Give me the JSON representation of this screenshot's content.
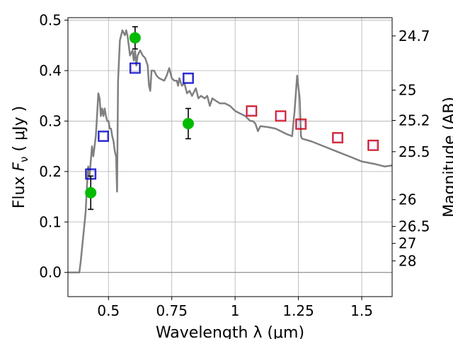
{
  "chart_data": {
    "type": "scatter",
    "title": "",
    "xlabel": "Wavelength  λ (μm)",
    "ylabel": "Flux  F_ν  ( μJy )",
    "ylabel_parts": {
      "prefix": "Flux  ",
      "symbol": "F",
      "subscript": "ν",
      "suffix": "  ( μJy )"
    },
    "y2label": "Magnitude (AB)",
    "xlim": [
      0.34,
      1.62
    ],
    "ylim": [
      -0.048,
      0.505
    ],
    "grid": true,
    "x_ticks": [
      {
        "value": 0.5,
        "label": "0.5"
      },
      {
        "value": 0.75,
        "label": "0.75"
      },
      {
        "value": 1.0,
        "label": "1"
      },
      {
        "value": 1.25,
        "label": "1.25"
      },
      {
        "value": 1.5,
        "label": "1.5"
      }
    ],
    "y_ticks": [
      {
        "value": 0.0,
        "label": "0.0"
      },
      {
        "value": 0.1,
        "label": "0.1"
      },
      {
        "value": 0.2,
        "label": "0.2"
      },
      {
        "value": 0.3,
        "label": "0.3"
      },
      {
        "value": 0.4,
        "label": "0.4"
      },
      {
        "value": 0.5,
        "label": "0.5"
      }
    ],
    "y2_ticks": [
      {
        "flux": 0.4688,
        "label": "24.7"
      },
      {
        "flux": 0.3613,
        "label": "25"
      },
      {
        "flux": 0.3013,
        "label": "25.2"
      },
      {
        "flux": 0.2393,
        "label": "25.5"
      },
      {
        "flux": 0.1442,
        "label": "26"
      },
      {
        "flux": 0.0911,
        "label": "26.5"
      },
      {
        "flux": 0.0575,
        "label": "27"
      },
      {
        "flux": 0.0229,
        "label": "28"
      }
    ],
    "series": [
      {
        "kind": "model-line",
        "color": "#808080",
        "points": [
          [
            0.34,
            0.0
          ],
          [
            0.385,
            0.0
          ],
          [
            0.39,
            0.02
          ],
          [
            0.4,
            0.07
          ],
          [
            0.41,
            0.12
          ],
          [
            0.415,
            0.17
          ],
          [
            0.42,
            0.21
          ],
          [
            0.425,
            0.19
          ],
          [
            0.43,
            0.22
          ],
          [
            0.435,
            0.25
          ],
          [
            0.44,
            0.23
          ],
          [
            0.445,
            0.25
          ],
          [
            0.45,
            0.27
          ],
          [
            0.455,
            0.31
          ],
          [
            0.46,
            0.355
          ],
          [
            0.465,
            0.345
          ],
          [
            0.47,
            0.31
          ],
          [
            0.475,
            0.325
          ],
          [
            0.48,
            0.31
          ],
          [
            0.485,
            0.325
          ],
          [
            0.49,
            0.31
          ],
          [
            0.495,
            0.3
          ],
          [
            0.5,
            0.3
          ],
          [
            0.505,
            0.285
          ],
          [
            0.51,
            0.285
          ],
          [
            0.515,
            0.27
          ],
          [
            0.52,
            0.26
          ],
          [
            0.525,
            0.24
          ],
          [
            0.53,
            0.23
          ],
          [
            0.534,
            0.16
          ],
          [
            0.538,
            0.38
          ],
          [
            0.545,
            0.46
          ],
          [
            0.555,
            0.48
          ],
          [
            0.565,
            0.47
          ],
          [
            0.57,
            0.48
          ],
          [
            0.575,
            0.47
          ],
          [
            0.585,
            0.43
          ],
          [
            0.595,
            0.44
          ],
          [
            0.6,
            0.42
          ],
          [
            0.605,
            0.44
          ],
          [
            0.61,
            0.41
          ],
          [
            0.615,
            0.43
          ],
          [
            0.625,
            0.44
          ],
          [
            0.635,
            0.43
          ],
          [
            0.645,
            0.425
          ],
          [
            0.655,
            0.41
          ],
          [
            0.66,
            0.37
          ],
          [
            0.665,
            0.36
          ],
          [
            0.67,
            0.4
          ],
          [
            0.68,
            0.4
          ],
          [
            0.69,
            0.39
          ],
          [
            0.7,
            0.385
          ],
          [
            0.72,
            0.38
          ],
          [
            0.73,
            0.39
          ],
          [
            0.74,
            0.405
          ],
          [
            0.75,
            0.385
          ],
          [
            0.76,
            0.38
          ],
          [
            0.77,
            0.38
          ],
          [
            0.775,
            0.37
          ],
          [
            0.78,
            0.385
          ],
          [
            0.79,
            0.37
          ],
          [
            0.8,
            0.375
          ],
          [
            0.81,
            0.355
          ],
          [
            0.82,
            0.36
          ],
          [
            0.83,
            0.35
          ],
          [
            0.845,
            0.365
          ],
          [
            0.855,
            0.345
          ],
          [
            0.865,
            0.35
          ],
          [
            0.88,
            0.345
          ],
          [
            0.89,
            0.35
          ],
          [
            0.9,
            0.33
          ],
          [
            0.91,
            0.345
          ],
          [
            0.925,
            0.34
          ],
          [
            0.94,
            0.335
          ],
          [
            0.96,
            0.335
          ],
          [
            0.98,
            0.33
          ],
          [
            1.0,
            0.32
          ],
          [
            1.02,
            0.315
          ],
          [
            1.04,
            0.31
          ],
          [
            1.06,
            0.3
          ],
          [
            1.07,
            0.3
          ],
          [
            1.08,
            0.295
          ],
          [
            1.09,
            0.28
          ],
          [
            1.1,
            0.29
          ],
          [
            1.13,
            0.288
          ],
          [
            1.16,
            0.285
          ],
          [
            1.2,
            0.275
          ],
          [
            1.225,
            0.27
          ],
          [
            1.235,
            0.32
          ],
          [
            1.245,
            0.39
          ],
          [
            1.255,
            0.345
          ],
          [
            1.26,
            0.27
          ],
          [
            1.265,
            0.265
          ],
          [
            1.3,
            0.26
          ],
          [
            1.35,
            0.25
          ],
          [
            1.4,
            0.24
          ],
          [
            1.45,
            0.23
          ],
          [
            1.5,
            0.22
          ],
          [
            1.55,
            0.215
          ],
          [
            1.59,
            0.21
          ],
          [
            1.62,
            0.212
          ]
        ]
      },
      {
        "kind": "observed",
        "color": "#00bb00",
        "marker": "circle",
        "points": [
          {
            "x": 0.43,
            "y": 0.158,
            "err_low": 0.033,
            "err_high": 0.033
          },
          {
            "x": 0.605,
            "y": 0.465,
            "err_low": 0.022,
            "err_high": 0.022
          },
          {
            "x": 0.815,
            "y": 0.295,
            "err_low": 0.03,
            "err_high": 0.03
          }
        ]
      },
      {
        "kind": "model-photometry",
        "marker": "square",
        "points": [
          {
            "x": 0.43,
            "y": 0.195,
            "edge": "#0000cc"
          },
          {
            "x": 0.48,
            "y": 0.27,
            "edge": "#0000cc"
          },
          {
            "x": 0.605,
            "y": 0.405,
            "edge": "#0000cc"
          },
          {
            "x": 0.815,
            "y": 0.385,
            "edge": "#0000cc"
          },
          {
            "x": 1.065,
            "y": 0.32,
            "edge": "#cc0000"
          },
          {
            "x": 1.18,
            "y": 0.31,
            "edge": "#cc0000"
          },
          {
            "x": 1.26,
            "y": 0.294,
            "edge": "#cc0000"
          },
          {
            "x": 1.405,
            "y": 0.267,
            "edge": "#cc0000"
          },
          {
            "x": 1.545,
            "y": 0.252,
            "edge": "#cc0000"
          }
        ]
      }
    ]
  }
}
